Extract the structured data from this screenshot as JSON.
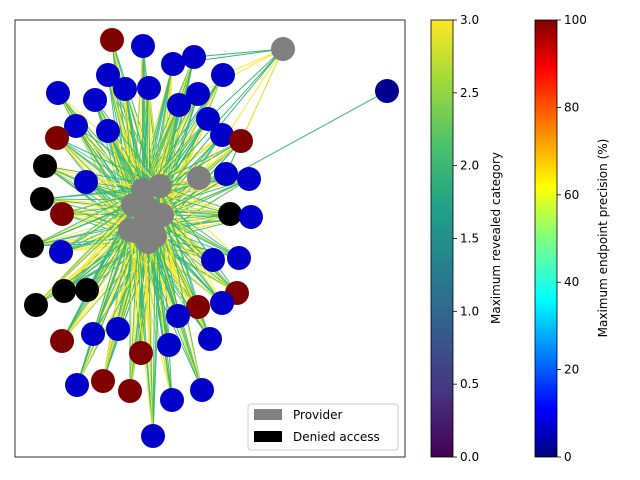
{
  "chart_data": {
    "type": "network",
    "legend": {
      "placement": "lower-right",
      "entries": [
        {
          "label": "Provider",
          "color": "#808080"
        },
        {
          "label": "Denied access",
          "color": "#000000"
        }
      ]
    },
    "colorbars": [
      {
        "label": "Maximum revealed category",
        "colormap": "viridis",
        "range": [
          0.0,
          3.0
        ],
        "ticks": [
          "0.0",
          "0.5",
          "1.0",
          "1.5",
          "2.0",
          "2.5",
          "3.0"
        ]
      },
      {
        "label": "Maximum endpoint precision (%)",
        "colormap": "jet",
        "range": [
          0,
          100
        ],
        "ticks": [
          "0",
          "20",
          "40",
          "60",
          "80",
          "100"
        ]
      }
    ],
    "edge_colors": {
      "category_3": "#fde725",
      "category_2": "#35b779"
    },
    "node_colors": {
      "provider": "#808080",
      "denied": "#000000",
      "precision_100": "#7f0000",
      "precision_0": "#00008f",
      "precision_low": "#0000c8"
    }
  }
}
